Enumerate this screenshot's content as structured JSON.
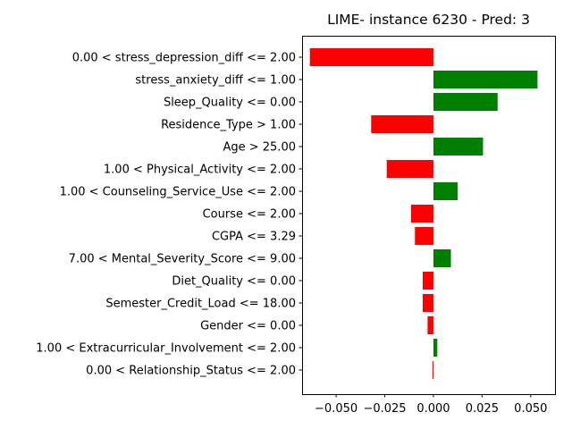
{
  "chart_data": {
    "type": "bar",
    "orientation": "horizontal",
    "title": "LIME- instance 6230 - Pred: 3",
    "xlabel": "",
    "ylabel": "",
    "xlim": [
      -0.0675,
      0.0625
    ],
    "xticks": [
      -0.05,
      -0.025,
      0.0,
      0.025,
      0.05
    ],
    "xtick_labels": [
      "−0.050",
      "−0.025",
      "0.000",
      "0.025",
      "0.050"
    ],
    "grid": false,
    "colors": {
      "positive": "#008000",
      "negative": "#ff0000"
    },
    "categories": [
      "0.00 < stress_depression_diff <= 2.00",
      "stress_anxiety_diff <= 1.00",
      "Sleep_Quality <= 0.00",
      "Residence_Type > 1.00",
      "Age > 25.00",
      "1.00 < Physical_Activity <= 2.00",
      "1.00 < Counseling_Service_Use <= 2.00",
      "Course <= 2.00",
      "CGPA <= 3.29",
      "7.00 < Mental_Severity_Score <= 9.00",
      "Diet_Quality <= 0.00",
      "Semester_Credit_Load <= 18.00",
      "Gender <= 0.00",
      "1.00 < Extracurricular_Involvement <= 2.00",
      "0.00 < Relationship_Status <= 2.00"
    ],
    "values": [
      -0.0635,
      0.0535,
      0.033,
      -0.032,
      0.0255,
      -0.024,
      0.0125,
      -0.0115,
      -0.0095,
      0.009,
      -0.0055,
      -0.0055,
      -0.003,
      0.002,
      -0.0005
    ]
  }
}
